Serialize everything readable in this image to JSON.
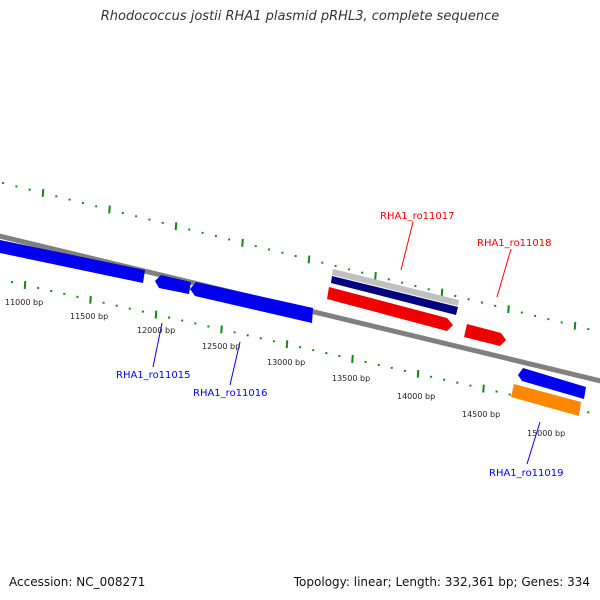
{
  "title": "Rhodococcus jostii RHA1 plasmid pRHL3, complete sequence",
  "footer": {
    "accession": "Accession: NC_008271",
    "topology": "Topology: linear; Length: 332,361 bp; Genes: 334"
  },
  "tick_labels": [
    "11000 bp",
    "11500 bp",
    "12000 bp",
    "12500 bp",
    "13000 bp",
    "13500 bp",
    "14000 bp",
    "14500 bp",
    "15000 bp"
  ],
  "features": [
    {
      "label": "RHA1_ro11015",
      "color": "#0000ff"
    },
    {
      "label": "RHA1_ro11016",
      "color": "#0000ff"
    },
    {
      "label": "RHA1_ro11017",
      "color": "#ff0000"
    },
    {
      "label": "RHA1_ro11018",
      "color": "#ff0000"
    },
    {
      "label": "RHA1_ro11019",
      "color": "#0000ff"
    }
  ],
  "colors": {
    "backbone": "#808080",
    "tick": "#118811",
    "cds_forward": "#ff0000",
    "cds_reverse": "#0000ff",
    "orange": "#ff8800",
    "navy": "#000080",
    "gray": "#c0c0c0"
  }
}
